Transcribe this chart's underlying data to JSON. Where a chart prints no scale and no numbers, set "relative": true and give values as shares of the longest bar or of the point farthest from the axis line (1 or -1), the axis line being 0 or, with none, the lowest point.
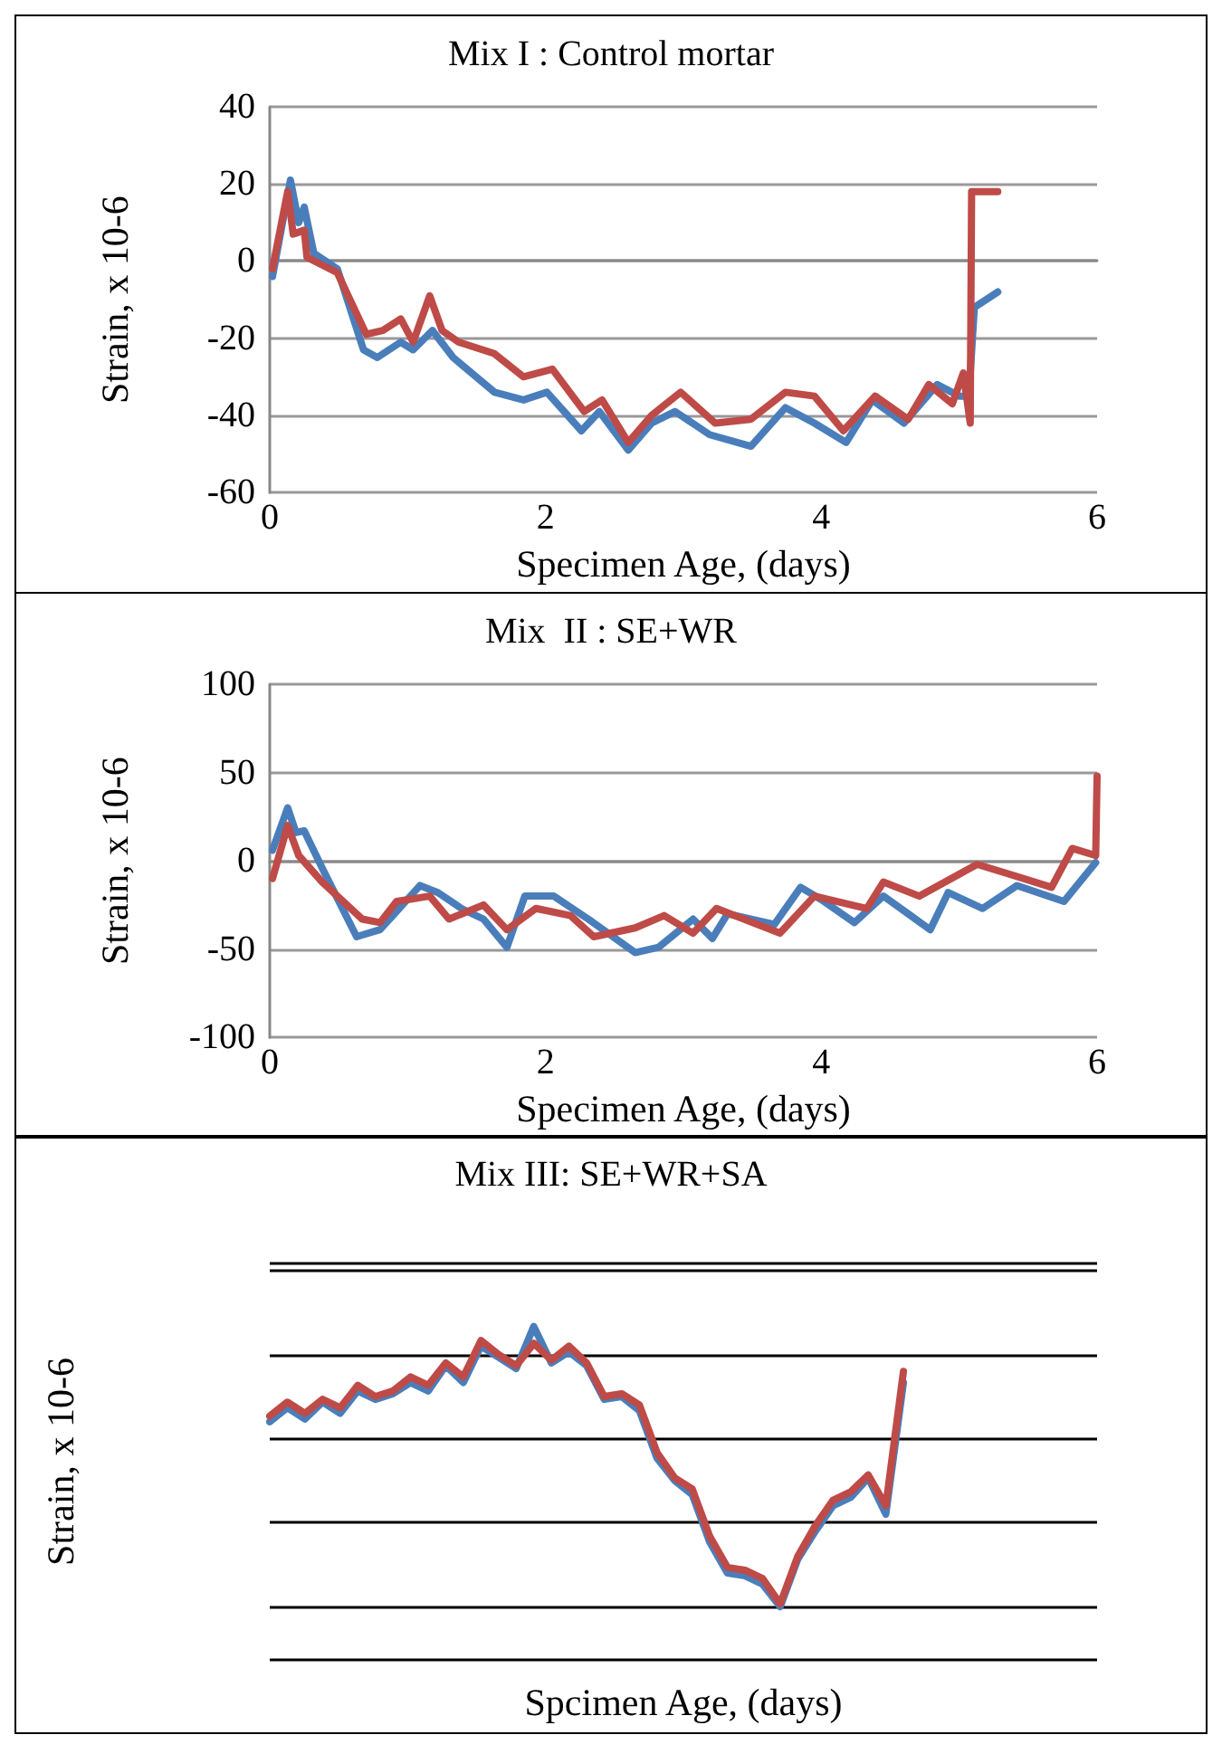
{
  "chart_data": [
    {
      "type": "line",
      "title": "Mix I : Control mortar",
      "xlabel": "Specimen Age, (days)",
      "ylabel": "Strain, x 10-6",
      "xlim": [
        0,
        6
      ],
      "xticks": [
        0,
        2,
        4,
        6
      ],
      "ylim": [
        -60,
        40
      ],
      "yticks": [
        -60,
        -40,
        -20,
        0,
        20,
        40
      ],
      "grid": "y",
      "marker": "none",
      "series": [
        {
          "color": "#4a7ebb",
          "x": [
            0.02,
            0.15,
            0.21,
            0.25,
            0.32,
            0.49,
            0.68,
            0.78,
            0.95,
            1.04,
            1.18,
            1.33,
            1.63,
            1.84,
            2.01,
            2.26,
            2.39,
            2.6,
            2.77,
            2.94,
            3.19,
            3.49,
            3.74,
            3.95,
            4.18,
            4.37,
            4.6,
            4.84,
            5.0,
            5.07,
            5.11,
            5.28
          ],
          "values": [
            -4,
            21,
            10,
            14,
            2,
            -2,
            -23,
            -25,
            -21,
            -23,
            -18,
            -25,
            -34,
            -36,
            -34,
            -44,
            -39,
            -49,
            -42,
            -39,
            -45,
            -48,
            -38,
            -42,
            -47,
            -36,
            -42,
            -32,
            -35,
            -35,
            -12,
            -8
          ]
        },
        {
          "color": "#be4b48",
          "x": [
            0.02,
            0.13,
            0.17,
            0.25,
            0.27,
            0.49,
            0.7,
            0.82,
            0.95,
            1.04,
            1.16,
            1.25,
            1.37,
            1.63,
            1.84,
            2.05,
            2.28,
            2.41,
            2.6,
            2.77,
            2.98,
            3.23,
            3.49,
            3.74,
            3.95,
            4.16,
            4.39,
            4.63,
            4.78,
            4.95,
            5.03,
            5.08,
            5.09,
            5.28
          ],
          "values": [
            -2,
            18,
            7,
            8,
            1,
            -3,
            -19,
            -18,
            -15,
            -21,
            -9,
            -18,
            -21,
            -24,
            -30,
            -28,
            -39,
            -36,
            -47,
            -40,
            -34,
            -42,
            -41,
            -34,
            -35,
            -44,
            -35,
            -41,
            -32,
            -37,
            -29,
            -42,
            18,
            18
          ]
        }
      ]
    },
    {
      "type": "line",
      "title": "Mix  II : SE+WR",
      "xlabel": "Specimen Age, (days)",
      "ylabel": "Strain, x 10-6",
      "xlim": [
        0,
        6
      ],
      "xticks": [
        0,
        2,
        4,
        6
      ],
      "ylim": [
        -100,
        100
      ],
      "yticks": [
        -100,
        -50,
        0,
        50,
        100
      ],
      "grid": "y",
      "marker": "none",
      "series": [
        {
          "color": "#4a7ebb",
          "x": [
            0.02,
            0.13,
            0.19,
            0.25,
            0.38,
            0.63,
            0.8,
            1.09,
            1.22,
            1.39,
            1.55,
            1.72,
            1.85,
            2.06,
            2.31,
            2.65,
            2.82,
            3.07,
            3.21,
            3.32,
            3.66,
            3.85,
            4.0,
            4.24,
            4.45,
            4.79,
            4.92,
            5.17,
            5.42,
            5.76,
            5.99
          ],
          "values": [
            6,
            30,
            16,
            17,
            -4,
            -43,
            -39,
            -14,
            -18,
            -27,
            -33,
            -49,
            -20,
            -20,
            -33,
            -52,
            -49,
            -33,
            -44,
            -30,
            -36,
            -15,
            -22,
            -35,
            -20,
            -39,
            -18,
            -27,
            -14,
            -23,
            -1
          ]
        },
        {
          "color": "#be4b48",
          "x": [
            0.02,
            0.13,
            0.21,
            0.38,
            0.67,
            0.8,
            0.92,
            1.16,
            1.3,
            1.55,
            1.72,
            1.93,
            2.18,
            2.35,
            2.65,
            2.86,
            3.07,
            3.24,
            3.7,
            3.95,
            4.33,
            4.45,
            4.71,
            5.13,
            5.34,
            5.67,
            5.82,
            5.99,
            6.0
          ],
          "values": [
            -10,
            20,
            3,
            -12,
            -33,
            -35,
            -23,
            -20,
            -33,
            -25,
            -39,
            -27,
            -31,
            -43,
            -38,
            -31,
            -41,
            -27,
            -41,
            -20,
            -27,
            -12,
            -20,
            -2,
            -7,
            -15,
            7,
            3,
            48
          ]
        }
      ]
    },
    {
      "type": "line",
      "title": "Mix III: SE+WR+SA",
      "xlabel": "Spcimen Age, (days)",
      "ylabel": "Strain, x 10-6",
      "relative": true,
      "grid": "y",
      "marker": "none",
      "categories": [
        null,
        null,
        null,
        null,
        null,
        null,
        null,
        null,
        null,
        null,
        null,
        null,
        null,
        null,
        null,
        null,
        null,
        null,
        null,
        null,
        null,
        null,
        null,
        null,
        null,
        null,
        null,
        null,
        null,
        null,
        null,
        null,
        null,
        null,
        null,
        null,
        null,
        null,
        null,
        null,
        null,
        null,
        null,
        null,
        null,
        null,
        null,
        null
      ],
      "series": [
        {
          "color": "#4a7ebb",
          "values": [
            0.66,
            0.71,
            0.67,
            0.73,
            0.69,
            0.77,
            0.74,
            0.76,
            0.8,
            0.77,
            0.86,
            0.8,
            0.93,
            0.89,
            0.85,
            1.0,
            0.87,
            0.91,
            0.86,
            0.74,
            0.75,
            0.7,
            0.53,
            0.45,
            0.4,
            0.23,
            0.12,
            0.11,
            0.08,
            0,
            0.17,
            0.27,
            0.36,
            0.39,
            0.46,
            0.33,
            0.8,
            null,
            null,
            null,
            null,
            null,
            null,
            null,
            null,
            null,
            null,
            null
          ]
        },
        {
          "color": "#be4b48",
          "values": [
            0.68,
            0.73,
            0.69,
            0.74,
            0.71,
            0.79,
            0.75,
            0.77,
            0.82,
            0.79,
            0.87,
            0.82,
            0.95,
            0.9,
            0.86,
            0.94,
            0.88,
            0.93,
            0.87,
            0.75,
            0.76,
            0.72,
            0.55,
            0.46,
            0.42,
            0.25,
            0.14,
            0.13,
            0.1,
            0.01,
            0.18,
            0.29,
            0.38,
            0.41,
            0.47,
            0.36,
            0.84,
            null,
            null,
            null,
            null,
            null,
            null,
            null,
            null,
            null,
            null,
            null
          ]
        }
      ]
    }
  ]
}
